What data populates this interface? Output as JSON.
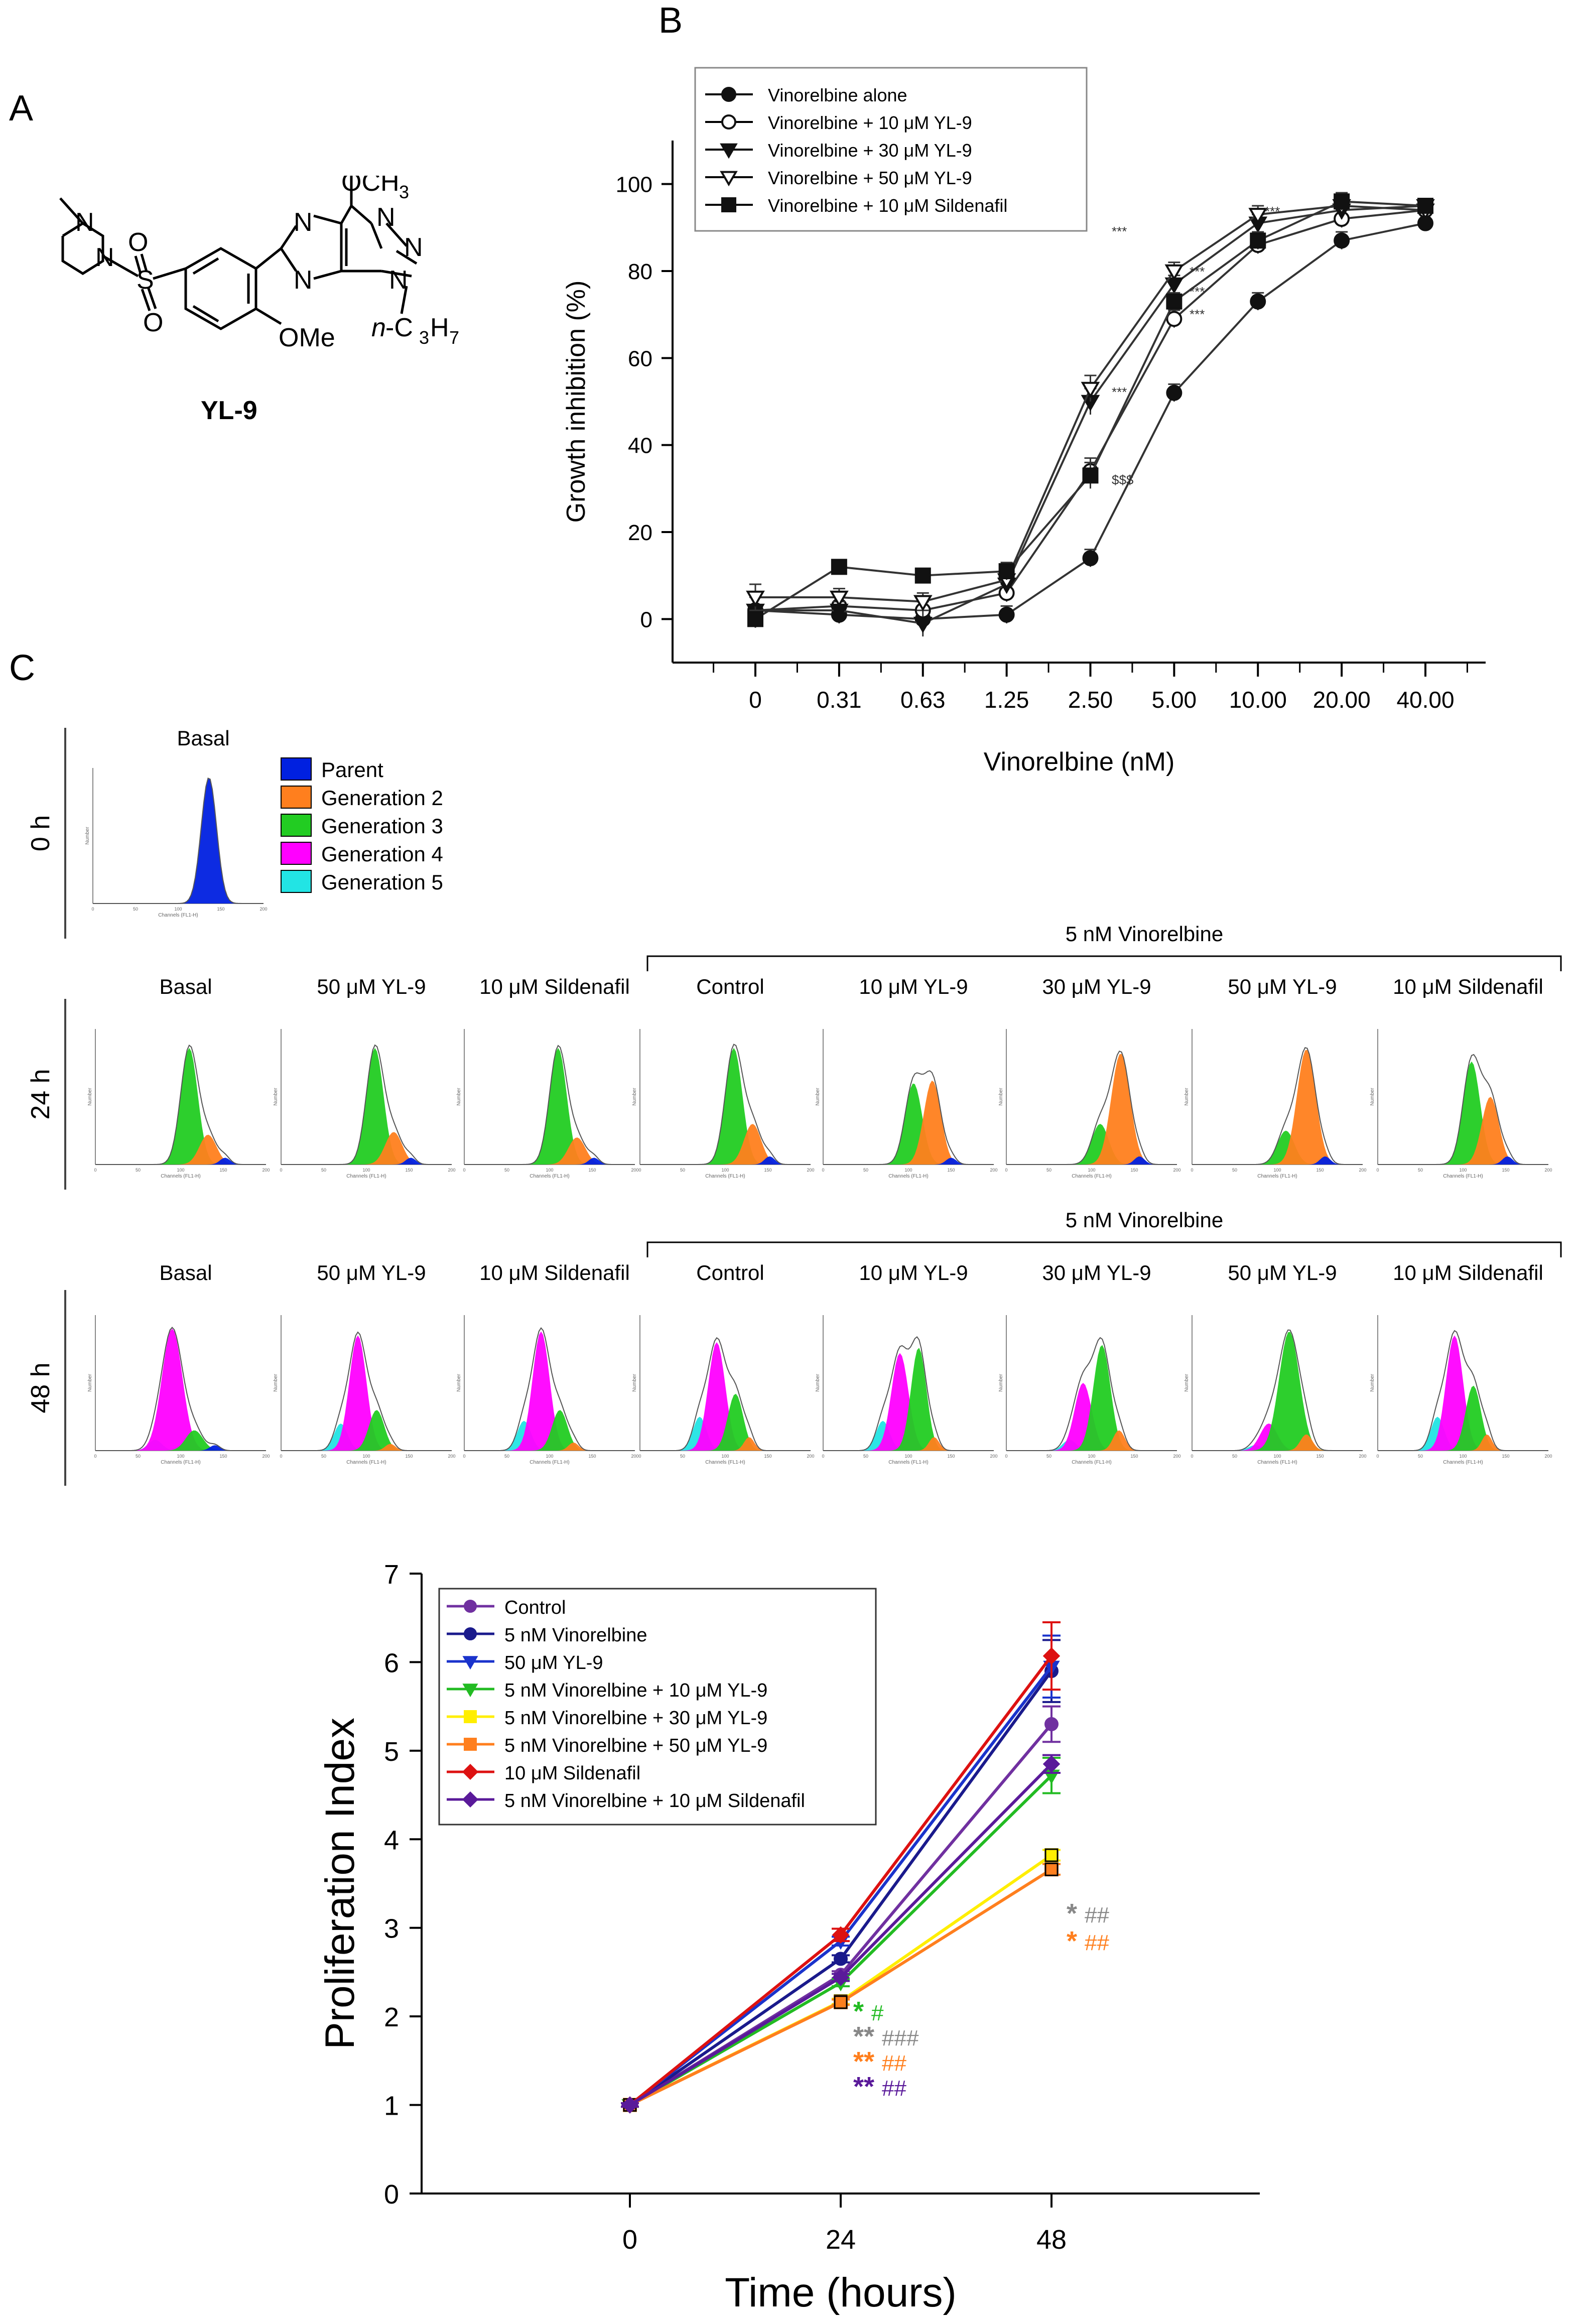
{
  "panel_labels": {
    "a": "A",
    "b": "B",
    "c": "C"
  },
  "molecule": {
    "name": "YL-9",
    "labels": {
      "methoxy_top": "OCH",
      "methoxy_top_sub": "3",
      "n_ring1": "N",
      "n_ring2": "N",
      "n_ring3": "N",
      "n_ring4": "N",
      "n_ring5": "N",
      "n_pip1": "N",
      "n_pip2": "N",
      "s": "S",
      "o1": "O",
      "o2": "O",
      "ome": "OMe",
      "propyl_n": "n",
      "propyl_rest": "-C",
      "propyl_sub1": "3",
      "propyl_h": "H",
      "propyl_sub2": "7"
    }
  },
  "panel_b": {
    "chart_data": {
      "type": "line",
      "ylabel": "Growth inhibition (%)",
      "xlabel": "Vinorelbine (nM)",
      "categories": [
        "0",
        "0.31",
        "0.63",
        "1.25",
        "2.50",
        "5.00",
        "10.00",
        "20.00",
        "40.00"
      ],
      "ylim": [
        -10,
        110
      ],
      "yticks": [
        0,
        20,
        40,
        60,
        80,
        100
      ],
      "legend": "top-left",
      "series": [
        {
          "name": "Vinorelbine alone",
          "marker": "circle-filled",
          "values": [
            2,
            1,
            0,
            1,
            14,
            52,
            73,
            87,
            91
          ],
          "errors": [
            3,
            2,
            2,
            2,
            2,
            2,
            2,
            2,
            1
          ]
        },
        {
          "name": "Vinorelbine + 10 μM YL-9",
          "marker": "circle-open",
          "values": [
            2,
            3,
            2,
            6,
            34,
            69,
            86,
            92,
            94
          ],
          "errors": [
            3,
            2,
            2,
            2,
            3,
            2,
            2,
            2,
            1
          ]
        },
        {
          "name": "Vinorelbine + 30 μM YL-9",
          "marker": "triangle-down-filled",
          "values": [
            2,
            2,
            -1,
            8,
            50,
            77,
            91,
            94,
            95
          ],
          "errors": [
            3,
            2,
            3,
            2,
            3,
            2,
            2,
            2,
            1
          ]
        },
        {
          "name": "Vinorelbine + 50 μM YL-9",
          "marker": "triangle-down-open",
          "values": [
            5,
            5,
            4,
            9,
            53,
            80,
            93,
            95,
            94
          ],
          "errors": [
            3,
            2,
            2,
            2,
            3,
            2,
            2,
            2,
            1
          ]
        },
        {
          "name": "Vinorelbine + 10 μM Sildenafil",
          "marker": "square-filled",
          "values": [
            0,
            12,
            10,
            11,
            33,
            73,
            87,
            96,
            95
          ],
          "errors": [
            2,
            1,
            1,
            2,
            3,
            2,
            2,
            2,
            1
          ]
        }
      ],
      "annotations": [
        "***",
        "***",
        "$$$",
        "***",
        "***",
        "***",
        "***"
      ]
    }
  },
  "panel_c": {
    "row_labels": [
      "0 h",
      "24 h",
      "48 h"
    ],
    "basal_title": "Basal",
    "legend": [
      {
        "label": "Parent",
        "color": "#0020e0"
      },
      {
        "label": "Generation 2",
        "color": "#ff7f1e"
      },
      {
        "label": "Generation 3",
        "color": "#22cc22"
      },
      {
        "label": "Generation 4",
        "color": "#ff00ff"
      },
      {
        "label": "Generation 5",
        "color": "#22e4e4"
      }
    ],
    "group_header": "5 nM Vinorelbine",
    "columns": [
      "Basal",
      "50 μM YL-9",
      "10 μM Sildenafil",
      "Control",
      "10 μM YL-9",
      "30 μM YL-9",
      "50 μM YL-9",
      "10 μM Sildenafil"
    ],
    "hist_axis": {
      "ylabel": "Number",
      "xlabel": "Channels (FL1-H)"
    },
    "hist_ticks": [
      "0",
      "50",
      "100",
      "150",
      "200"
    ]
  },
  "panel_d": {
    "chart_data": {
      "type": "line",
      "ylabel": "Proliferation Index",
      "xlabel": "Time (hours)",
      "categories": [
        "0",
        "24",
        "48"
      ],
      "ylim": [
        0,
        7
      ],
      "yticks": [
        0,
        1,
        2,
        3,
        4,
        5,
        6,
        7
      ],
      "legend": "top-left",
      "series": [
        {
          "name": "Control",
          "color": "#7030a0",
          "marker": "circle",
          "values": [
            1.0,
            2.47,
            5.3
          ],
          "errors": [
            0.02,
            0.04,
            0.2
          ]
        },
        {
          "name": "5 nM Vinorelbine",
          "color": "#1a1a8c",
          "marker": "circle",
          "values": [
            1.0,
            2.65,
            5.9
          ],
          "errors": [
            0.02,
            0.04,
            0.35
          ]
        },
        {
          "name": "50 μM YL-9",
          "color": "#1a33cc",
          "marker": "triangle-down",
          "values": [
            1.0,
            2.85,
            5.95
          ],
          "errors": [
            0.02,
            0.05,
            0.35
          ]
        },
        {
          "name": "5 nM Vinorelbine + 10 μM YL-9",
          "color": "#22bb22",
          "marker": "triangle-down",
          "values": [
            1.0,
            2.38,
            4.72
          ],
          "errors": [
            0.02,
            0.04,
            0.2
          ]
        },
        {
          "name": "5 nM Vinorelbine + 30 μM YL-9",
          "color": "#ffee00",
          "marker": "square",
          "values": [
            1.0,
            2.17,
            3.82
          ],
          "errors": [
            0.02,
            0.03,
            0.06
          ]
        },
        {
          "name": "5 nM Vinorelbine + 50 μM YL-9",
          "color": "#ff7f1e",
          "marker": "square",
          "values": [
            1.0,
            2.16,
            3.66
          ],
          "errors": [
            0.02,
            0.03,
            0.06
          ]
        },
        {
          "name": "10 μM Sildenafil",
          "color": "#dd1111",
          "marker": "diamond",
          "values": [
            1.0,
            2.92,
            6.07
          ],
          "errors": [
            0.02,
            0.07,
            0.38
          ]
        },
        {
          "name": "5 nM Vinorelbine + 10 μM Sildenafil",
          "color": "#5a1a9a",
          "marker": "diamond",
          "values": [
            1.0,
            2.44,
            4.85
          ],
          "errors": [
            0.02,
            0.04,
            0.1
          ]
        }
      ],
      "annotations": [
        {
          "text": "* ##",
          "color_star": "#888888",
          "color_hash": "#888888"
        },
        {
          "text": "* ##",
          "color_star": "#ff7f1e",
          "color_hash": "#ff7f1e"
        },
        {
          "text": "*  #",
          "color_star": "#22bb22",
          "color_hash": "#22bb22"
        },
        {
          "text": "**###",
          "color_star": "#888888",
          "color_hash": "#888888"
        },
        {
          "text": "**##",
          "color_star": "#ff7f1e",
          "color_hash": "#ff7f1e"
        },
        {
          "text": "**##",
          "color_star": "#5a1a9a",
          "color_hash": "#5a1a9a"
        }
      ]
    }
  }
}
